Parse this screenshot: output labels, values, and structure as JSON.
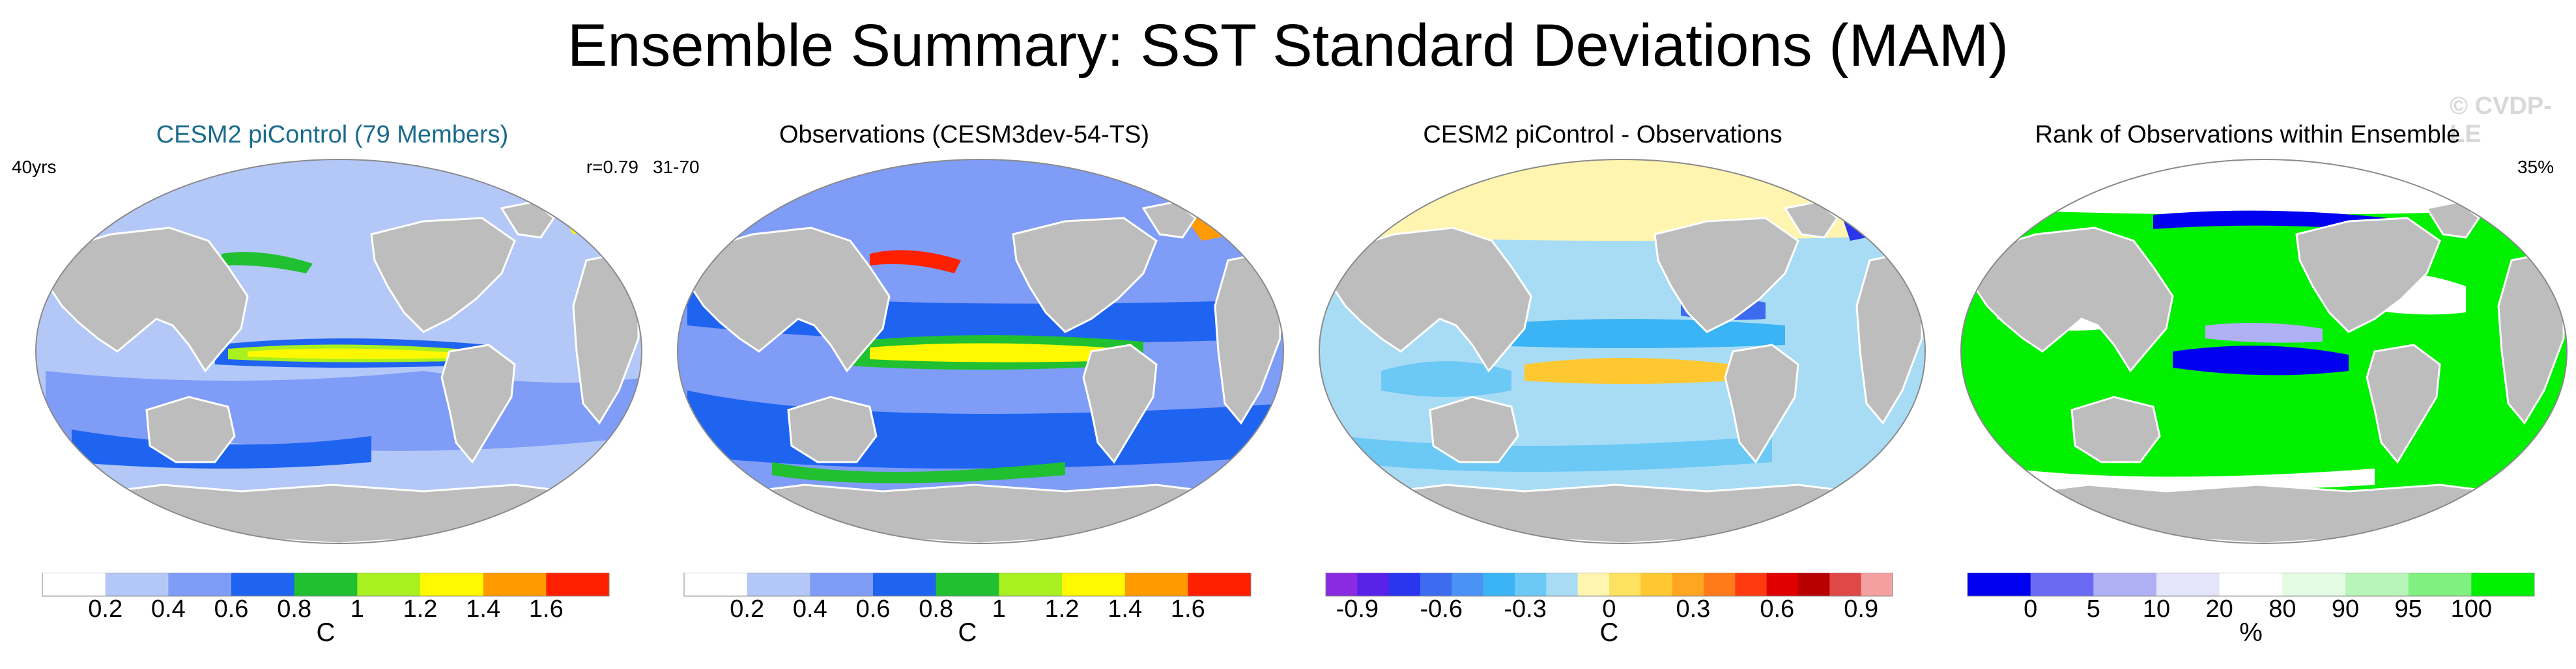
{
  "title": "Ensemble Summary: SST Standard Deviations (MAM)",
  "watermark": "© CVDP-LE",
  "panels": [
    {
      "title": "CESM2 piControl (79 Members)",
      "left_label": "40yrs",
      "right_label": "r=0.79",
      "colorbar": {
        "unit": "C",
        "colors": [
          "#ffffff",
          "#b4c8f8",
          "#7f9cf7",
          "#1f64f0",
          "#20c030",
          "#a8f020",
          "#fff800",
          "#ff9a00",
          "#ff2000"
        ],
        "tick_labels": [
          "0.2",
          "0.4",
          "0.6",
          "0.8",
          "1",
          "1.2",
          "1.4",
          "1.6"
        ]
      }
    },
    {
      "title": "Observations (CESM3dev-54-TS)",
      "left_label": "31-70",
      "right_label": "",
      "colorbar": {
        "unit": "C",
        "colors": [
          "#ffffff",
          "#b4c8f8",
          "#7f9cf7",
          "#1f64f0",
          "#20c030",
          "#a8f020",
          "#fff800",
          "#ff9a00",
          "#ff2000"
        ],
        "tick_labels": [
          "0.2",
          "0.4",
          "0.6",
          "0.8",
          "1",
          "1.2",
          "1.4",
          "1.6"
        ]
      }
    },
    {
      "title": "CESM2 piControl - Observations",
      "left_label": "",
      "right_label": "",
      "colorbar": {
        "unit": "C",
        "colors": [
          "#8a2be2",
          "#5a22e8",
          "#2a35ee",
          "#3d6bf0",
          "#4a93f5",
          "#3bb4f5",
          "#6cc8f5",
          "#a8dcf5",
          "#fff5b0",
          "#ffe160",
          "#ffc830",
          "#ffa520",
          "#ff7a18",
          "#ff3a10",
          "#e00000",
          "#b80000",
          "#e04848",
          "#f4a0a0"
        ],
        "tick_labels": [
          "-0.9",
          "-0.6",
          "-0.3",
          "0",
          "0.3",
          "0.6",
          "0.9"
        ]
      }
    },
    {
      "title": "Rank of Observations within Ensemble",
      "left_label": "",
      "right_label": "35%",
      "colorbar": {
        "unit": "%",
        "colors": [
          "#0000f0",
          "#6a6af5",
          "#b0b0f5",
          "#e4e4fb",
          "#ffffff",
          "#e4fbe4",
          "#b8f5b8",
          "#80f080",
          "#00f000"
        ],
        "tick_labels": [
          "0",
          "5",
          "10",
          "20",
          "80",
          "90",
          "95",
          "100"
        ]
      }
    }
  ]
}
